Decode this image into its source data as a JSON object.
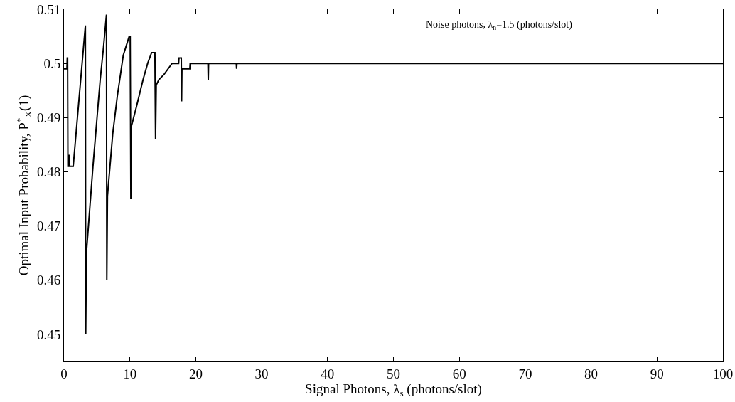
{
  "chart_data": {
    "type": "line",
    "xlabel": "Signal Photons, λ$_{s}$ (photons/slot)",
    "ylabel": "Optimal Input Probability, P$^{*}$$_{X}$(1)",
    "annotations": [
      "Noise photons, λ$_{n}$=1.5 (photons/slot)"
    ],
    "x": [
      0,
      0.45,
      0.5,
      0.55,
      0.6,
      0.7,
      0.75,
      0.8,
      0.85,
      1.4,
      3.25,
      3.3,
      3.4,
      4.4,
      5.5,
      6.0,
      6.45,
      6.5,
      6.6,
      7.4,
      8.1,
      9.0,
      9.9,
      10.05,
      10.15,
      10.25,
      11.0,
      12.0,
      12.7,
      13.3,
      13.8,
      13.9,
      14.0,
      14.4,
      15.2,
      15.8,
      16.4,
      17.4,
      17.45,
      17.8,
      17.85,
      17.9,
      19.1,
      19.15,
      21.85,
      21.9,
      21.95,
      26.15,
      26.2,
      26.25,
      100
    ],
    "series": [
      {
        "color": "#000000",
        "values": [
          0.499,
          0.499,
          0.501,
          0.501,
          0.481,
          0.481,
          0.483,
          0.483,
          0.481,
          0.481,
          0.507,
          0.45,
          0.465,
          0.481,
          0.497,
          0.503,
          0.509,
          0.46,
          0.4755,
          0.487,
          0.494,
          0.5015,
          0.505,
          0.505,
          0.475,
          0.4885,
          0.492,
          0.497,
          0.5,
          0.502,
          0.502,
          0.486,
          0.496,
          0.497,
          0.498,
          0.499,
          0.5,
          0.5,
          0.501,
          0.501,
          0.493,
          0.499,
          0.499,
          0.5,
          0.5,
          0.497,
          0.5,
          0.5,
          0.499,
          0.5,
          0.5
        ]
      }
    ],
    "xlim": [
      0,
      100
    ],
    "xticks": [
      0,
      10,
      20,
      30,
      40,
      50,
      60,
      70,
      80,
      90,
      100
    ],
    "ylim": [
      0.445,
      0.51
    ],
    "yticks": [
      0.45,
      0.46,
      0.47,
      0.48,
      0.49,
      0.5,
      0.51
    ],
    "grid": false,
    "marker": "none",
    "line_style": "solid"
  }
}
